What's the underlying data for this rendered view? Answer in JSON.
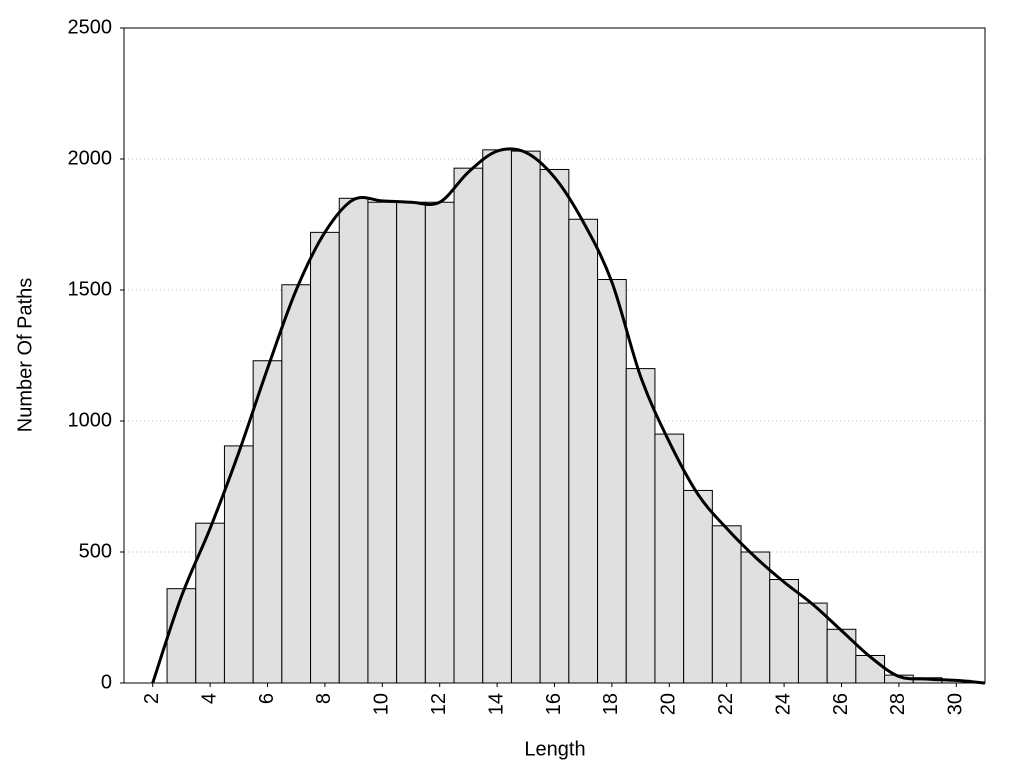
{
  "chart_data": {
    "type": "histogram",
    "xlabel": "Length",
    "ylabel": "Number Of Paths",
    "bins": [
      2.5,
      3.5,
      4.5,
      5.5,
      6.5,
      7.5,
      8.5,
      9.5,
      10.5,
      11.5,
      12.5,
      13.5,
      14.5,
      15.5,
      16.5,
      17.5,
      18.5,
      19.5,
      20.5,
      21.5,
      22.5,
      23.5,
      24.5,
      25.5,
      26.5,
      27.5,
      28.5,
      29.5,
      30.5
    ],
    "values": [
      360,
      610,
      905,
      1230,
      1520,
      1720,
      1850,
      1835,
      1835,
      1835,
      1965,
      2035,
      2030,
      1960,
      1770,
      1540,
      1200,
      950,
      735,
      600,
      500,
      395,
      305,
      205,
      105,
      30,
      20,
      10
    ],
    "color": "#e0e0e0",
    "line": {
      "color": "#000000",
      "x": [
        2,
        3,
        4,
        5,
        6,
        7,
        8,
        9,
        10,
        11,
        12,
        13,
        14,
        15,
        16,
        17,
        18,
        19,
        20,
        21,
        22,
        23,
        24,
        25,
        26,
        27,
        28,
        29,
        30,
        31
      ],
      "values": [
        0,
        330,
        590,
        880,
        1200,
        1500,
        1720,
        1845,
        1840,
        1835,
        1835,
        1950,
        2030,
        2025,
        1930,
        1760,
        1530,
        1170,
        920,
        720,
        590,
        480,
        385,
        300,
        200,
        100,
        25,
        15,
        10,
        0
      ]
    },
    "xlim": [
      1,
      31
    ],
    "ylim": [
      0,
      2500
    ],
    "xticks": [
      2,
      4,
      6,
      8,
      10,
      12,
      14,
      16,
      18,
      20,
      22,
      24,
      26,
      28,
      30
    ],
    "yticks": [
      0,
      500,
      1000,
      1500,
      2000,
      2500
    ],
    "grid": true
  }
}
